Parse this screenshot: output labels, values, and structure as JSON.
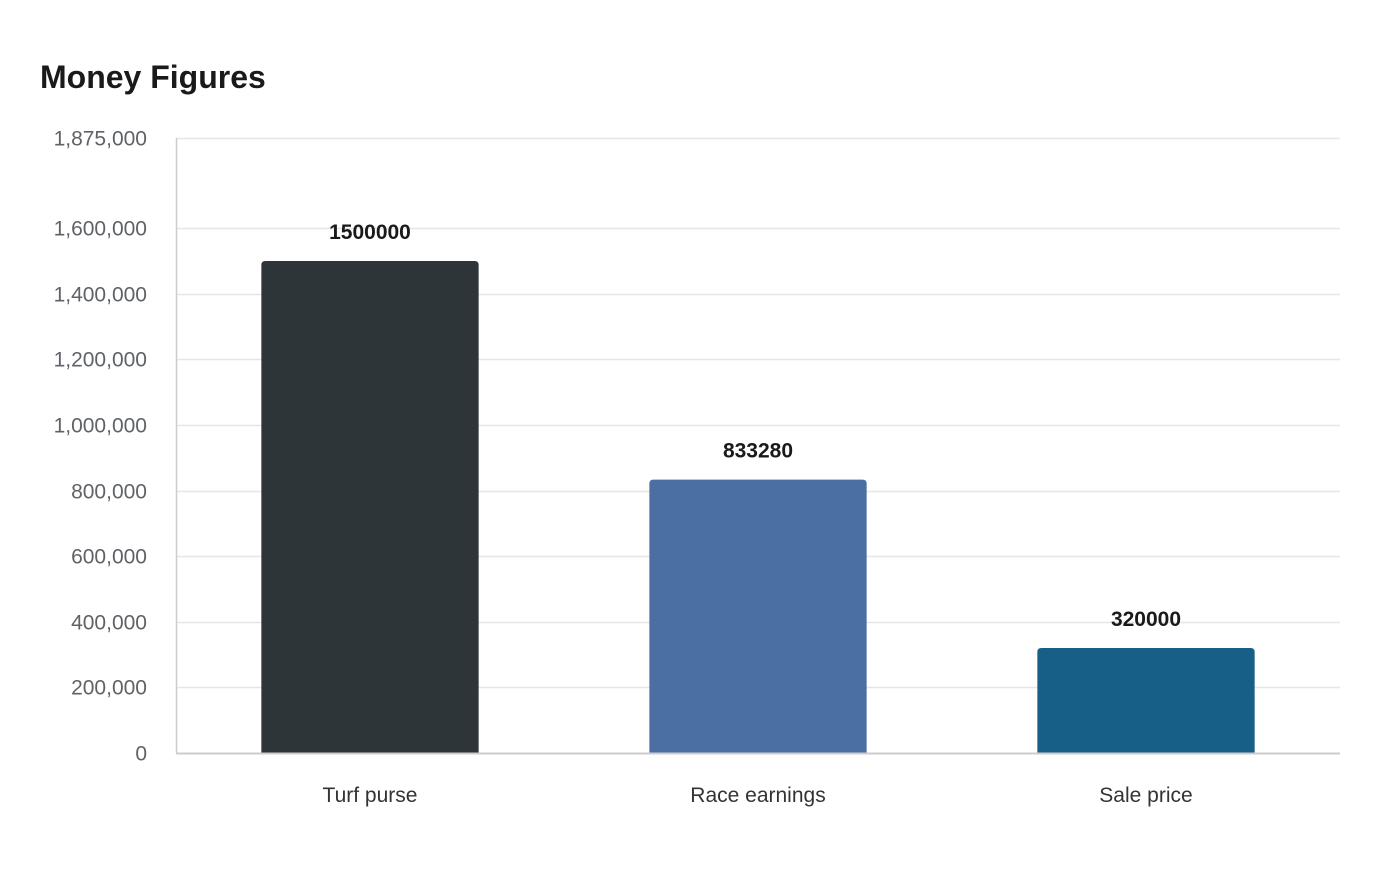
{
  "chart_data": {
    "type": "bar",
    "title": "Money Figures",
    "xlabel": "",
    "ylabel": "",
    "categories": [
      "Turf purse",
      "Race earnings",
      "Sale price"
    ],
    "values": [
      1500000,
      833280,
      320000
    ],
    "data_labels": [
      "1500000",
      "833280",
      "320000"
    ],
    "colors": [
      "#2e3538",
      "#4b6fa3",
      "#175f87"
    ],
    "ylim": [
      0,
      1875000
    ],
    "yticks": [
      0,
      200000,
      400000,
      600000,
      800000,
      1000000,
      1200000,
      1400000,
      1600000,
      1875000
    ],
    "ytick_labels": [
      "0",
      "200,000",
      "400,000",
      "600,000",
      "800,000",
      "1,000,000",
      "1,200,000",
      "1,400,000",
      "1,600,000",
      "1,875,000"
    ],
    "grid": true,
    "legend": "none"
  }
}
